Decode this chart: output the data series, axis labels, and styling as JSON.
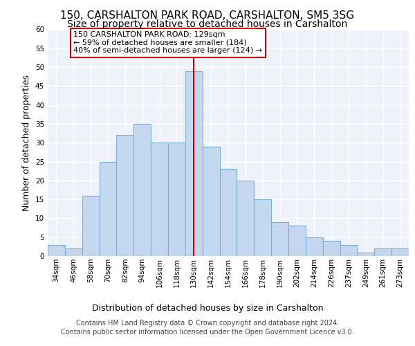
{
  "title1": "150, CARSHALTON PARK ROAD, CARSHALTON, SM5 3SG",
  "title2": "Size of property relative to detached houses in Carshalton",
  "xlabel": "Distribution of detached houses by size in Carshalton",
  "ylabel": "Number of detached properties",
  "categories": [
    "34sqm",
    "46sqm",
    "58sqm",
    "70sqm",
    "82sqm",
    "94sqm",
    "106sqm",
    "118sqm",
    "130sqm",
    "142sqm",
    "154sqm",
    "166sqm",
    "178sqm",
    "190sqm",
    "202sqm",
    "214sqm",
    "226sqm",
    "237sqm",
    "249sqm",
    "261sqm",
    "273sqm"
  ],
  "values": [
    3,
    2,
    16,
    25,
    32,
    35,
    30,
    30,
    49,
    29,
    23,
    20,
    15,
    9,
    8,
    5,
    4,
    3,
    1,
    2,
    2
  ],
  "bar_color": "#c5d8f0",
  "bar_edge_color": "#7bafd4",
  "highlight_index": 8,
  "vline_color": "#cc0000",
  "ylim": [
    0,
    60
  ],
  "yticks": [
    0,
    5,
    10,
    15,
    20,
    25,
    30,
    35,
    40,
    45,
    50,
    55,
    60
  ],
  "annotation_title": "150 CARSHALTON PARK ROAD: 129sqm",
  "annotation_line1": "← 59% of detached houses are smaller (184)",
  "annotation_line2": "40% of semi-detached houses are larger (124) →",
  "annotation_box_color": "#ffffff",
  "annotation_box_edge": "#cc0000",
  "footer1": "Contains HM Land Registry data © Crown copyright and database right 2024.",
  "footer2": "Contains public sector information licensed under the Open Government Licence v3.0.",
  "bg_color": "#eef2fa",
  "grid_color": "#ffffff",
  "title1_fontsize": 11,
  "title2_fontsize": 10,
  "xlabel_fontsize": 9,
  "ylabel_fontsize": 9,
  "tick_fontsize": 7.5,
  "annotation_fontsize": 8,
  "footer_fontsize": 7
}
